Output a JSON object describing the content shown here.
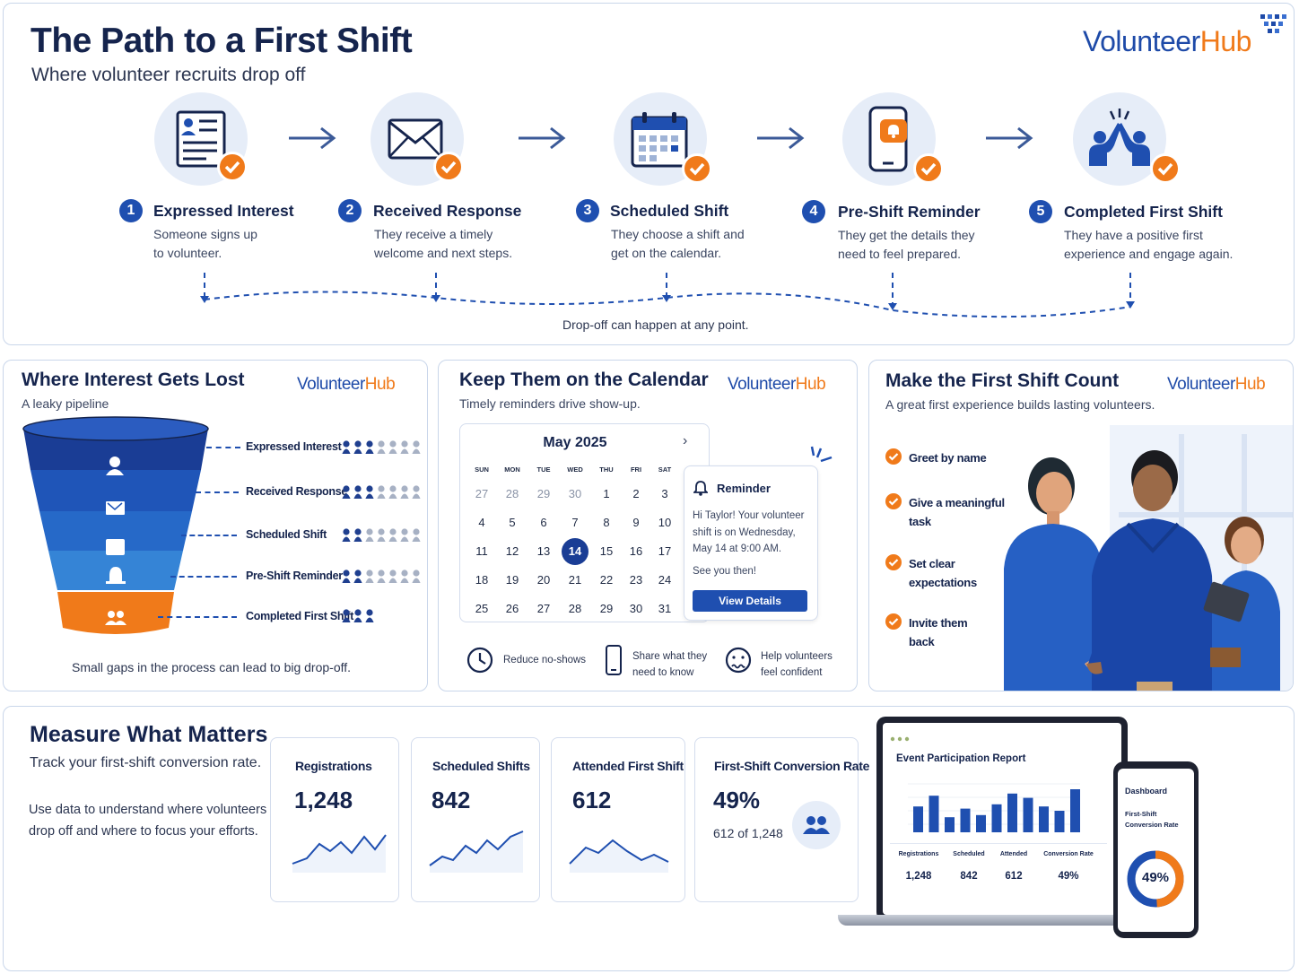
{
  "header": {
    "title": "The Path to a First Shift",
    "subtitle": "Where volunteer recruits drop off",
    "brand_part1": "Volunteer",
    "brand_part2": "Hub"
  },
  "steps": [
    {
      "num": "1",
      "title": "Expressed Interest",
      "desc1": "Someone signs up",
      "desc2": "to volunteer.",
      "icon": "form-icon"
    },
    {
      "num": "2",
      "title": "Received Response",
      "desc1": "They receive a timely",
      "desc2": "welcome and next steps.",
      "icon": "envelope-icon"
    },
    {
      "num": "3",
      "title": "Scheduled Shift",
      "desc1": "They choose a shift and",
      "desc2": "get on the calendar.",
      "icon": "calendar-icon"
    },
    {
      "num": "4",
      "title": "Pre-Shift Reminder",
      "desc1": "They get the details they",
      "desc2": "need to feel prepared.",
      "icon": "phone-bell-icon"
    },
    {
      "num": "5",
      "title": "Completed First Shift",
      "desc1": "They have a positive first",
      "desc2": "experience and engage again.",
      "icon": "high-five-icon"
    }
  ],
  "dropoff_note": "Drop-off can happen at any point.",
  "funnel": {
    "title": "Where Interest Gets Lost",
    "subtitle": "A leaky pipeline",
    "stages": [
      {
        "label": "Expressed Interest",
        "filled": 3,
        "total": 7
      },
      {
        "label": "Received Response",
        "filled": 3,
        "total": 7
      },
      {
        "label": "Scheduled Shift",
        "filled": 2,
        "total": 7
      },
      {
        "label": "Pre-Shift Reminder",
        "filled": 2,
        "total": 7
      },
      {
        "label": "Completed First Shift",
        "filled": 3,
        "total": 3
      }
    ],
    "footer": "Small gaps in the process can lead to big drop-off.",
    "colors": [
      "#1a3d95",
      "#1f55b8",
      "#2669c8",
      "#3584d6",
      "#f07a1a"
    ]
  },
  "calendar_panel": {
    "title": "Keep Them on the Calendar",
    "subtitle": "Timely reminders drive show-up.",
    "month": "May 2025",
    "dow": [
      "SUN",
      "MON",
      "TUE",
      "WED",
      "THU",
      "FRI",
      "SAT"
    ],
    "weeks": [
      [
        "27",
        "28",
        "29",
        "30",
        "1",
        "2",
        "3"
      ],
      [
        "4",
        "5",
        "6",
        "7",
        "8",
        "9",
        "10"
      ],
      [
        "11",
        "12",
        "13",
        "14",
        "15",
        "16",
        "17"
      ],
      [
        "18",
        "19",
        "20",
        "21",
        "22",
        "23",
        "24"
      ],
      [
        "25",
        "26",
        "27",
        "28",
        "29",
        "30",
        "31"
      ]
    ],
    "selected_day": "14",
    "reminder": {
      "title": "Reminder",
      "line1": "Hi Taylor! Your volunteer",
      "line2": "shift is on Wednesday,",
      "line3": "May 14 at 9:00 AM.",
      "line4": "See you then!",
      "button": "View Details"
    },
    "features": [
      {
        "line1": "Reduce no-shows",
        "line2": ""
      },
      {
        "line1": "Share what they",
        "line2": "need to know"
      },
      {
        "line1": "Help volunteers",
        "line2": "feel confident"
      }
    ]
  },
  "first_shift_panel": {
    "title": "Make the First Shift Count",
    "subtitle": "A great first experience builds lasting volunteers.",
    "items": [
      {
        "line1": "Greet by name",
        "line2": ""
      },
      {
        "line1": "Give a meaningful",
        "line2": "task"
      },
      {
        "line1": "Set clear",
        "line2": "expectations"
      },
      {
        "line1": "Invite them",
        "line2": "back"
      }
    ]
  },
  "metrics": {
    "title": "Measure What Matters",
    "subtitle": "Track your first-shift conversion rate.",
    "body1": "Use data to understand where volunteers",
    "body2": "drop off and where to focus your efforts.",
    "cards": [
      {
        "label": "Registrations",
        "value": "1,248"
      },
      {
        "label": "Scheduled Shifts",
        "value": "842"
      },
      {
        "label": "Attended First Shift",
        "value": "612"
      }
    ],
    "conversion": {
      "label": "First-Shift Conversion Rate",
      "value": "49%",
      "detail": "612 of 1,248"
    }
  },
  "report": {
    "title": "Event Participation Report",
    "bars": [
      60,
      85,
      35,
      55,
      40,
      65,
      90,
      80,
      60,
      50,
      100
    ],
    "columns": [
      "Registrations",
      "Scheduled",
      "Attended",
      "Conversion Rate"
    ],
    "values": [
      "1,248",
      "842",
      "612",
      "49%"
    ],
    "phone_title": "Dashboard",
    "phone_sub1": "First-Shift",
    "phone_sub2": "Conversion Rate",
    "phone_value": "49%",
    "phone_fraction": 0.49
  }
}
